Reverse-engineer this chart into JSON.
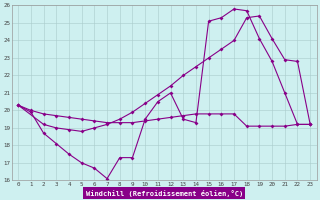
{
  "xlabel": "Windchill (Refroidissement éolien,°C)",
  "xlim": [
    -0.5,
    23.5
  ],
  "ylim": [
    16,
    26
  ],
  "xticks": [
    0,
    1,
    2,
    3,
    4,
    5,
    6,
    7,
    8,
    9,
    10,
    11,
    12,
    13,
    14,
    15,
    16,
    17,
    18,
    19,
    20,
    21,
    22,
    23
  ],
  "yticks": [
    16,
    17,
    18,
    19,
    20,
    21,
    22,
    23,
    24,
    25,
    26
  ],
  "bg_color": "#cef0f0",
  "line_color": "#880088",
  "grid_color": "#aacccc",
  "s1_x": [
    0,
    1,
    2,
    3,
    4,
    5,
    6,
    7,
    8,
    9,
    10,
    11,
    12,
    13,
    14,
    15,
    16,
    17,
    18,
    19,
    20,
    21,
    22,
    23
  ],
  "s1_y": [
    20.3,
    20.0,
    19.8,
    19.7,
    19.6,
    19.5,
    19.4,
    19.3,
    19.3,
    19.3,
    19.4,
    19.5,
    19.6,
    19.7,
    19.8,
    19.8,
    19.8,
    19.8,
    19.1,
    19.1,
    19.1,
    19.1,
    19.2,
    19.2
  ],
  "s2_x": [
    0,
    1,
    2,
    3,
    4,
    5,
    6,
    7,
    8,
    9,
    10,
    11,
    12,
    13,
    14,
    15,
    16,
    17,
    18,
    19,
    20,
    21,
    22,
    23
  ],
  "s2_y": [
    20.3,
    19.9,
    18.7,
    18.1,
    17.5,
    17.0,
    16.7,
    16.1,
    17.3,
    17.3,
    19.5,
    20.5,
    21.0,
    19.5,
    19.3,
    25.1,
    25.3,
    25.8,
    25.7,
    24.1,
    22.8,
    21.0,
    19.2,
    19.2
  ],
  "s3_x": [
    0,
    2,
    3,
    4,
    5,
    6,
    7,
    8,
    9,
    10,
    11,
    12,
    13,
    14,
    15,
    16,
    17,
    18,
    19,
    20,
    21,
    22,
    23
  ],
  "s3_y": [
    20.3,
    19.2,
    19.0,
    18.9,
    18.8,
    19.0,
    19.2,
    19.5,
    19.9,
    20.4,
    20.9,
    21.4,
    22.0,
    22.5,
    23.0,
    23.5,
    24.0,
    25.3,
    25.4,
    24.1,
    22.9,
    22.8,
    19.2
  ]
}
